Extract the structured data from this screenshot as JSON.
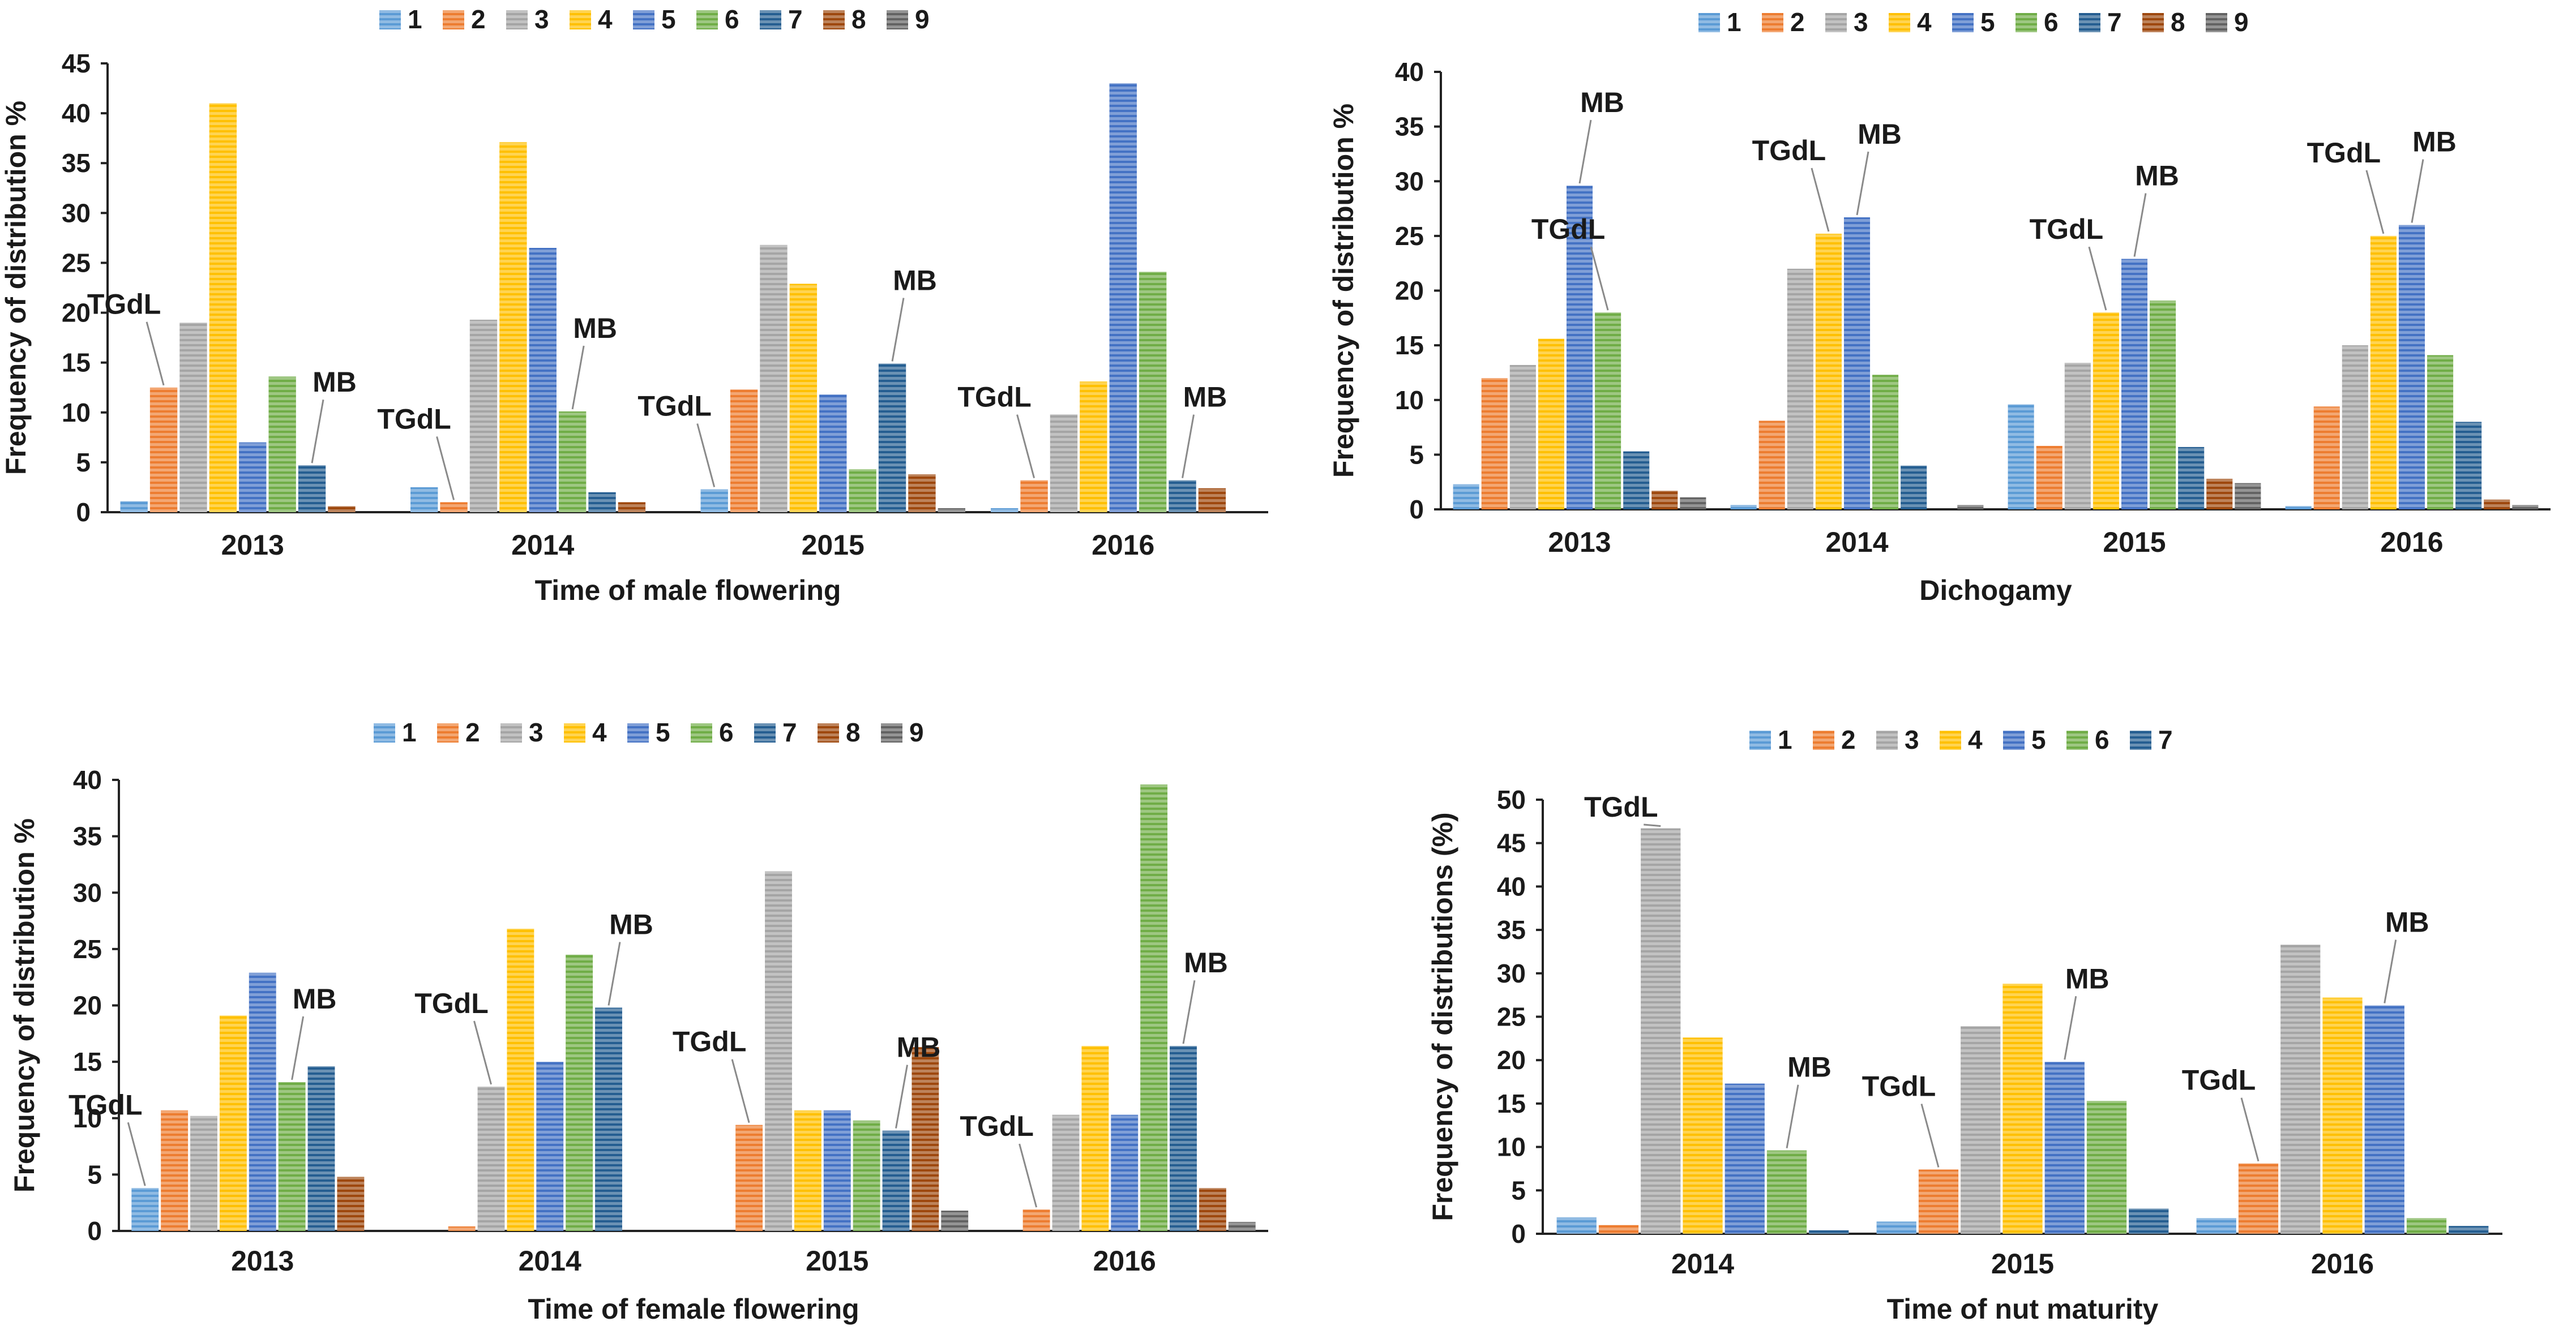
{
  "colors": {
    "1": "#5b9bd5",
    "2": "#ed7d31",
    "3": "#a5a5a5",
    "4": "#ffc000",
    "5": "#4472c4",
    "6": "#70ad47",
    "7": "#255e91",
    "8": "#9e480e",
    "9": "#636363"
  },
  "chart_data": [
    {
      "type": "bar",
      "xlabel": "Time of male flowering",
      "ylabel": "Frequency of distribution %",
      "ylim": [
        0,
        45
      ],
      "yticks": [
        0,
        5,
        10,
        15,
        20,
        25,
        30,
        35,
        40,
        45
      ],
      "categories": [
        "2013",
        "2014",
        "2015",
        "2016"
      ],
      "legend": [
        "1",
        "2",
        "3",
        "4",
        "5",
        "6",
        "7",
        "8",
        "9"
      ],
      "series": [
        {
          "name": "1",
          "values": [
            1.1,
            2.5,
            2.3,
            0.4
          ]
        },
        {
          "name": "2",
          "values": [
            12.5,
            1.0,
            12.3,
            3.2
          ]
        },
        {
          "name": "3",
          "values": [
            19.0,
            19.3,
            26.8,
            9.8
          ]
        },
        {
          "name": "4",
          "values": [
            41.0,
            37.1,
            22.9,
            13.1
          ]
        },
        {
          "name": "5",
          "values": [
            7.0,
            26.5,
            11.8,
            43.0
          ]
        },
        {
          "name": "6",
          "values": [
            13.6,
            10.1,
            4.3,
            24.1
          ]
        },
        {
          "name": "7",
          "values": [
            4.7,
            2.0,
            14.9,
            3.2
          ]
        },
        {
          "name": "8",
          "values": [
            0.6,
            1.0,
            3.8,
            2.4
          ]
        },
        {
          "name": "9",
          "values": [
            0.0,
            0.0,
            0.4,
            0.0
          ]
        }
      ],
      "annotations": [
        {
          "text": "TGdL",
          "category": 0,
          "series": 1
        },
        {
          "text": "MB",
          "category": 0,
          "series": 6
        },
        {
          "text": "TGdL",
          "category": 1,
          "series": 1
        },
        {
          "text": "MB",
          "category": 1,
          "series": 5
        },
        {
          "text": "TGdL",
          "category": 2,
          "series": 0
        },
        {
          "text": "MB",
          "category": 2,
          "series": 6
        },
        {
          "text": "TGdL",
          "category": 3,
          "series": 1
        },
        {
          "text": "MB",
          "category": 3,
          "series": 6
        }
      ]
    },
    {
      "type": "bar",
      "xlabel": "Dichogamy",
      "ylabel": "Frequency of distribution %",
      "ylim": [
        0,
        40
      ],
      "yticks": [
        0,
        5,
        10,
        15,
        20,
        25,
        30,
        35,
        40
      ],
      "categories": [
        "2013",
        "2014",
        "2015",
        "2016"
      ],
      "legend": [
        "1",
        "2",
        "3",
        "4",
        "5",
        "6",
        "7",
        "8",
        "9"
      ],
      "series": [
        {
          "name": "1",
          "values": [
            2.3,
            0.4,
            9.6,
            0.3
          ]
        },
        {
          "name": "2",
          "values": [
            12.0,
            8.1,
            5.8,
            9.4
          ]
        },
        {
          "name": "3",
          "values": [
            13.2,
            22.0,
            13.4,
            15.0
          ]
        },
        {
          "name": "4",
          "values": [
            15.6,
            25.2,
            18.0,
            25.0
          ]
        },
        {
          "name": "5",
          "values": [
            29.6,
            26.7,
            22.9,
            26.0
          ]
        },
        {
          "name": "6",
          "values": [
            18.0,
            12.3,
            19.1,
            14.1
          ]
        },
        {
          "name": "7",
          "values": [
            5.3,
            4.0,
            5.7,
            8.0
          ]
        },
        {
          "name": "8",
          "values": [
            1.7,
            0.0,
            2.8,
            0.9
          ]
        },
        {
          "name": "9",
          "values": [
            1.1,
            0.4,
            2.4,
            0.4
          ]
        }
      ],
      "annotations": [
        {
          "text": "MB",
          "category": 0,
          "series": 4
        },
        {
          "text": "TGdL",
          "category": 0,
          "series": 5
        },
        {
          "text": "TGdL",
          "category": 1,
          "series": 3
        },
        {
          "text": "MB",
          "category": 1,
          "series": 4
        },
        {
          "text": "TGdL",
          "category": 2,
          "series": 3
        },
        {
          "text": "MB",
          "category": 2,
          "series": 4
        },
        {
          "text": "TGdL",
          "category": 3,
          "series": 3
        },
        {
          "text": "MB",
          "category": 3,
          "series": 4
        }
      ]
    },
    {
      "type": "bar",
      "xlabel": "Time of female flowering",
      "ylabel": "Frequency of distribution %",
      "ylim": [
        0,
        40
      ],
      "yticks": [
        0,
        5,
        10,
        15,
        20,
        25,
        30,
        35,
        40
      ],
      "categories": [
        "2013",
        "2014",
        "2015",
        "2016"
      ],
      "legend": [
        "1",
        "2",
        "3",
        "4",
        "5",
        "6",
        "7",
        "8",
        "9"
      ],
      "series": [
        {
          "name": "1",
          "values": [
            3.8,
            0.0,
            0.0,
            0.0
          ]
        },
        {
          "name": "2",
          "values": [
            10.7,
            0.4,
            9.4,
            1.9
          ]
        },
        {
          "name": "3",
          "values": [
            10.2,
            12.8,
            31.9,
            10.3
          ]
        },
        {
          "name": "4",
          "values": [
            19.1,
            26.8,
            10.7,
            16.4
          ]
        },
        {
          "name": "5",
          "values": [
            22.9,
            15.0,
            10.7,
            10.3
          ]
        },
        {
          "name": "6",
          "values": [
            13.2,
            24.5,
            9.8,
            39.6
          ]
        },
        {
          "name": "7",
          "values": [
            14.6,
            19.8,
            8.9,
            16.4
          ]
        },
        {
          "name": "8",
          "values": [
            4.8,
            0.0,
            16.3,
            3.8
          ]
        },
        {
          "name": "9",
          "values": [
            0.0,
            0.0,
            1.8,
            0.8
          ]
        }
      ],
      "annotations": [
        {
          "text": "TGdL",
          "category": 0,
          "series": 0
        },
        {
          "text": "MB",
          "category": 0,
          "series": 5
        },
        {
          "text": "TGdL",
          "category": 1,
          "series": 2
        },
        {
          "text": "MB",
          "category": 1,
          "series": 6
        },
        {
          "text": "TGdL",
          "category": 2,
          "series": 1
        },
        {
          "text": "MB",
          "category": 2,
          "series": 6
        },
        {
          "text": "TGdL",
          "category": 3,
          "series": 1
        },
        {
          "text": "MB",
          "category": 3,
          "series": 6
        }
      ]
    },
    {
      "type": "bar",
      "xlabel": "Time of nut maturity",
      "ylabel": "Frequency of distributions (%)",
      "ylim": [
        0,
        50
      ],
      "yticks": [
        0,
        5,
        10,
        15,
        20,
        25,
        30,
        35,
        40,
        45,
        50
      ],
      "categories": [
        "2014",
        "2015",
        "2016"
      ],
      "legend": [
        "1",
        "2",
        "3",
        "4",
        "5",
        "6",
        "7"
      ],
      "series": [
        {
          "name": "1",
          "values": [
            1.9,
            1.4,
            1.8
          ]
        },
        {
          "name": "2",
          "values": [
            1.0,
            7.4,
            8.1
          ]
        },
        {
          "name": "3",
          "values": [
            46.7,
            23.9,
            33.3
          ]
        },
        {
          "name": "4",
          "values": [
            22.6,
            28.8,
            27.2
          ]
        },
        {
          "name": "5",
          "values": [
            17.3,
            19.8,
            26.3
          ]
        },
        {
          "name": "6",
          "values": [
            9.6,
            15.3,
            1.8
          ]
        },
        {
          "name": "7",
          "values": [
            0.4,
            2.9,
            0.9
          ]
        }
      ],
      "annotations": [
        {
          "text": "TGdL",
          "category": 0,
          "series": 2
        },
        {
          "text": "MB",
          "category": 0,
          "series": 5
        },
        {
          "text": "TGdL",
          "category": 1,
          "series": 1
        },
        {
          "text": "MB",
          "category": 1,
          "series": 4
        },
        {
          "text": "TGdL",
          "category": 2,
          "series": 1
        },
        {
          "text": "MB",
          "category": 2,
          "series": 4
        }
      ]
    }
  ]
}
